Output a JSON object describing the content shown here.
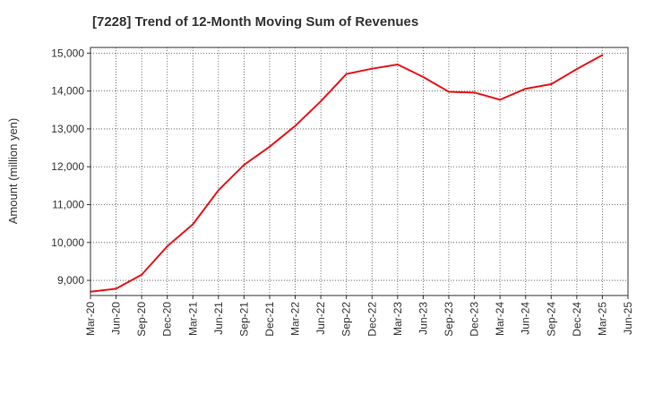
{
  "chart_data": {
    "type": "line",
    "title": "[7228]  Trend of 12-Month Moving Sum of Revenues",
    "xlabel": "",
    "ylabel": "Amount (million yen)",
    "x": [
      "Mar-20",
      "Jun-20",
      "Sep-20",
      "Dec-20",
      "Mar-21",
      "Jun-21",
      "Sep-21",
      "Dec-21",
      "Mar-22",
      "Jun-22",
      "Sep-22",
      "Dec-22",
      "Mar-23",
      "Jun-23",
      "Sep-23",
      "Dec-23",
      "Mar-24",
      "Jun-24",
      "Sep-24",
      "Dec-24",
      "Mar-25",
      "Jun-25"
    ],
    "ylim": [
      8600,
      15150
    ],
    "yticks": [
      9000,
      10000,
      11000,
      12000,
      13000,
      14000,
      15000
    ],
    "ytick_labels": [
      "9,000",
      "10,000",
      "11,000",
      "12,000",
      "13,000",
      "14,000",
      "15,000"
    ],
    "grid": true,
    "series": [
      {
        "color": "#e8141b",
        "values": [
          8700,
          8780,
          9150,
          9900,
          10480,
          11380,
          12050,
          12530,
          13080,
          13730,
          14450,
          14590,
          14700,
          14370,
          13980,
          13960,
          13770,
          14060,
          14180,
          14580,
          14950,
          null
        ]
      }
    ]
  }
}
